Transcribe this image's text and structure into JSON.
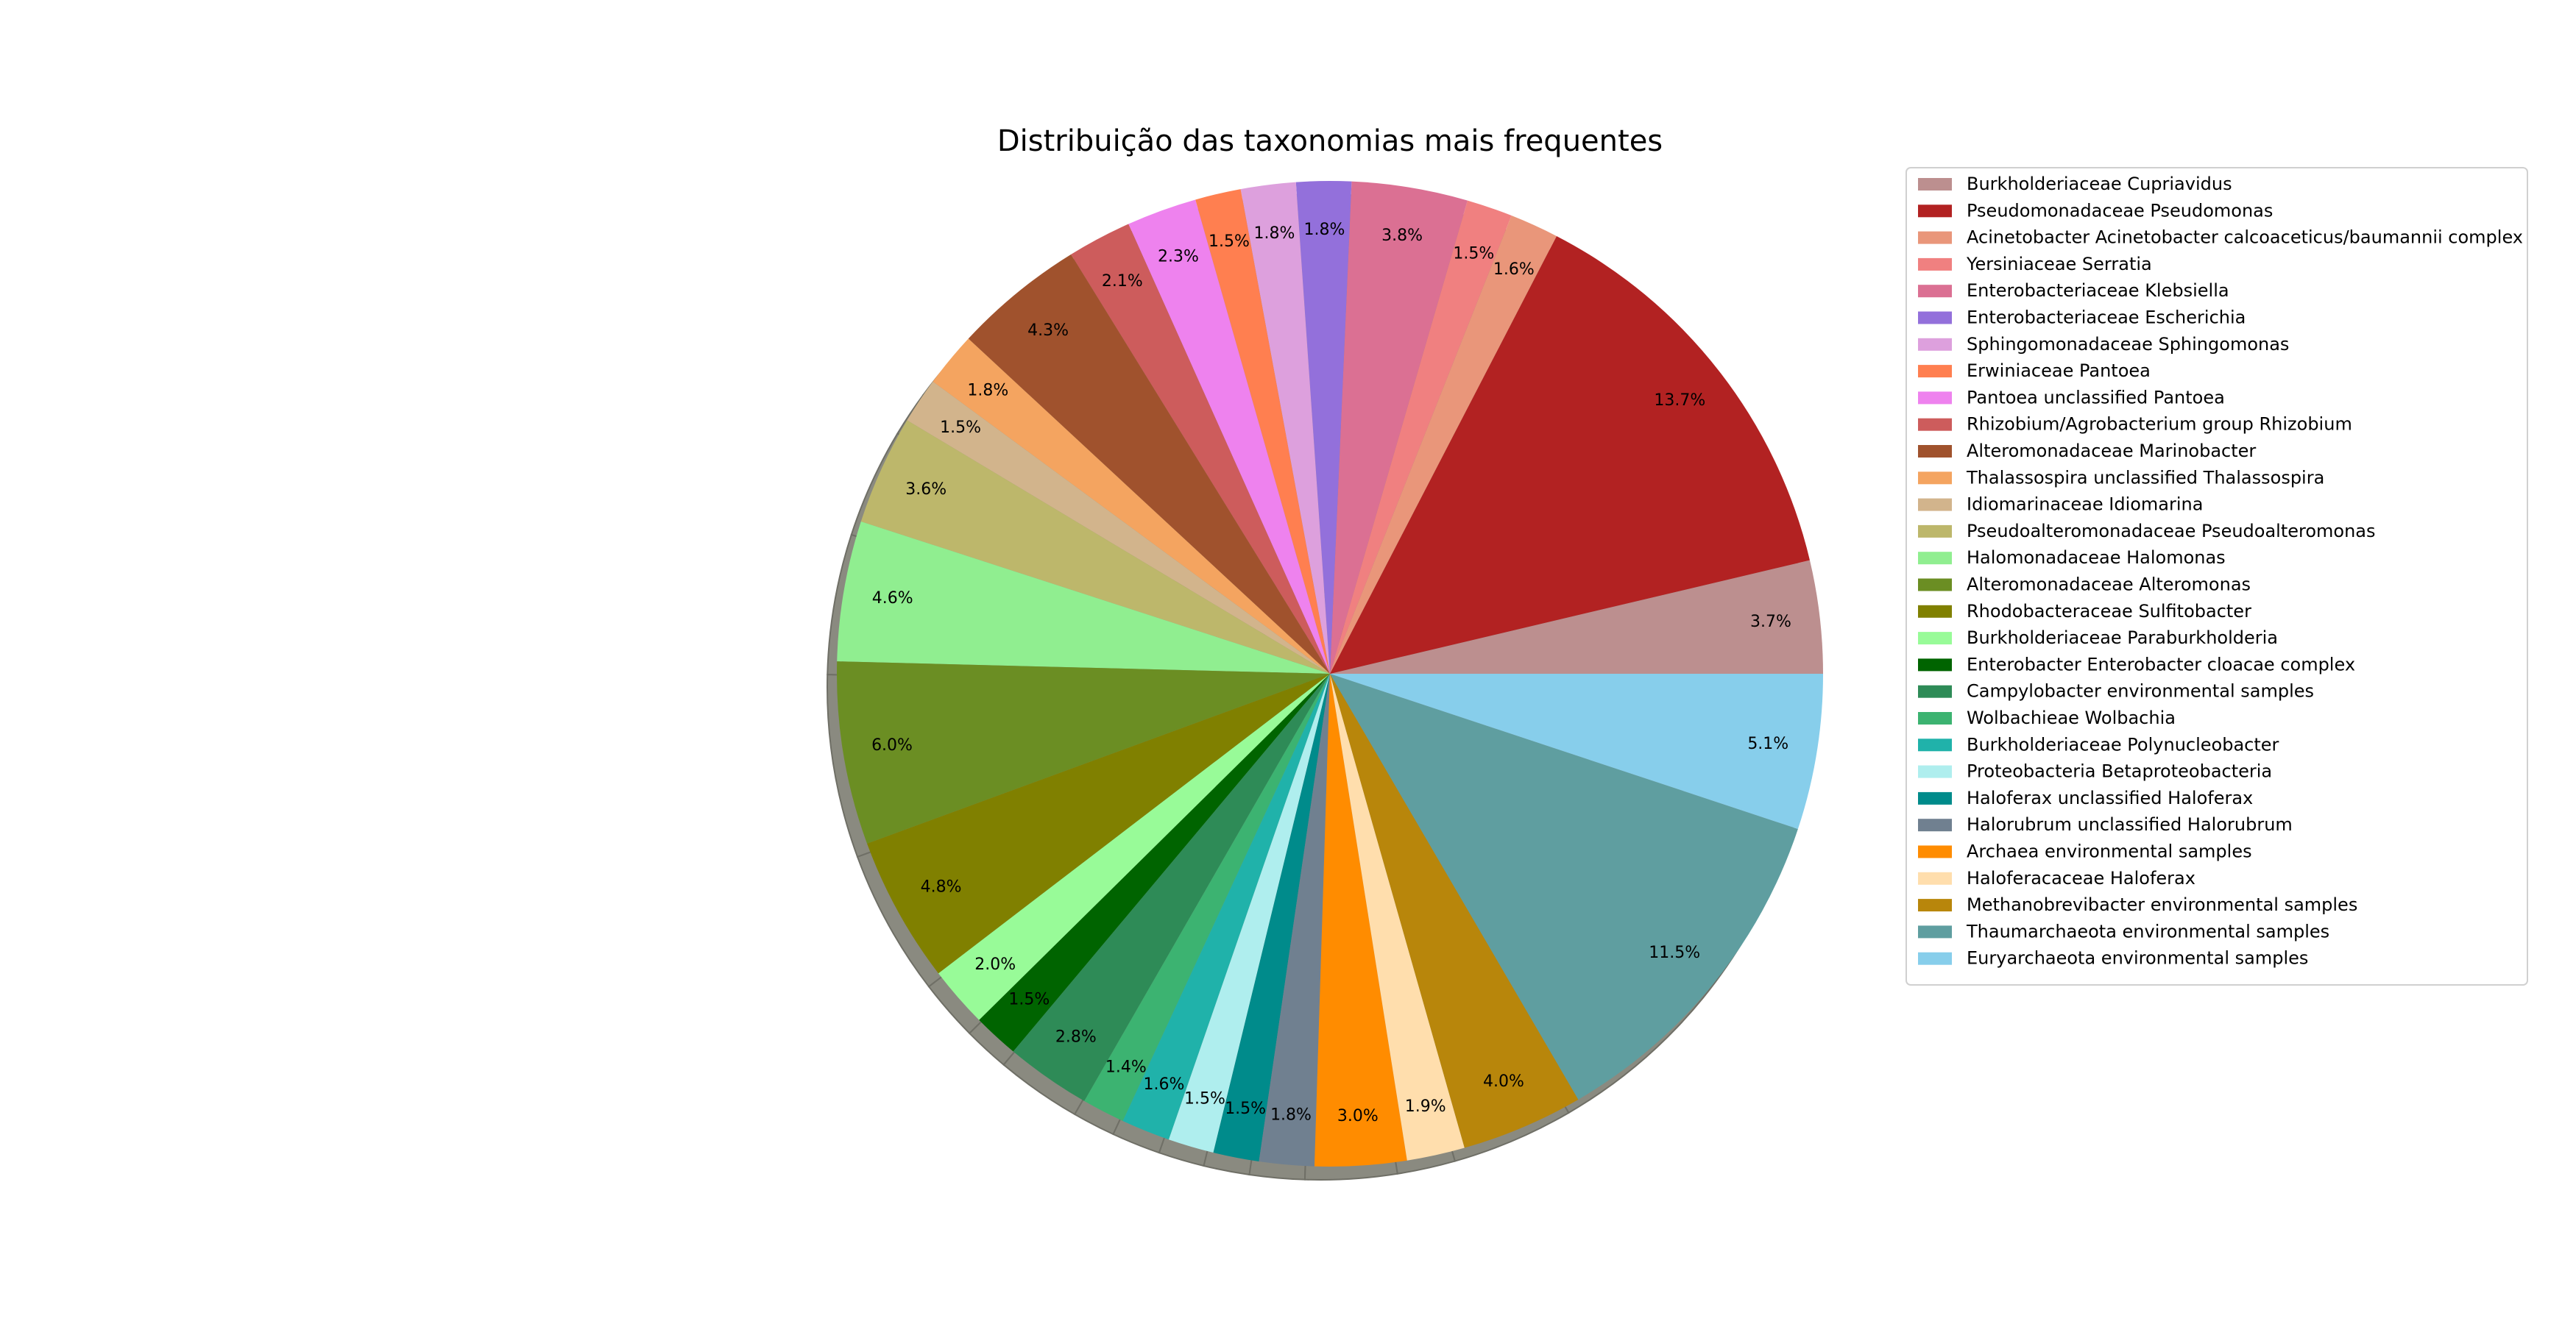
{
  "chart_data": {
    "type": "pie",
    "title": "Distribuição das taxonomias mais frequentes",
    "legend_position": "right",
    "shadow": true,
    "start_angle_deg": 0,
    "direction": "counterclockwise",
    "slices": [
      {
        "label": "Burkholderiaceae Cupriavidus",
        "value": 3.7,
        "pct_label": "3.7%",
        "color": "#BC8F8F"
      },
      {
        "label": "Pseudomonadaceae Pseudomonas",
        "value": 13.7,
        "pct_label": "13.7%",
        "color": "#B22222"
      },
      {
        "label": "Acinetobacter Acinetobacter calcoaceticus/baumannii complex",
        "value": 1.6,
        "pct_label": "1.6%",
        "color": "#E9967A"
      },
      {
        "label": "Yersiniaceae Serratia",
        "value": 1.5,
        "pct_label": "1.5%",
        "color": "#F08080"
      },
      {
        "label": "Enterobacteriaceae Klebsiella",
        "value": 3.8,
        "pct_label": "3.8%",
        "color": "#DB7093"
      },
      {
        "label": "Enterobacteriaceae Escherichia",
        "value": 1.8,
        "pct_label": "1.8%",
        "color": "#9370DB"
      },
      {
        "label": "Sphingomonadaceae Sphingomonas",
        "value": 1.8,
        "pct_label": "1.8%",
        "color": "#DDA0DD"
      },
      {
        "label": "Erwiniaceae Pantoea",
        "value": 1.5,
        "pct_label": "1.5%",
        "color": "#FF7F50"
      },
      {
        "label": "Pantoea unclassified Pantoea",
        "value": 2.3,
        "pct_label": "2.3%",
        "color": "#EE82EE"
      },
      {
        "label": "Rhizobium/Agrobacterium group Rhizobium",
        "value": 2.1,
        "pct_label": "2.1%",
        "color": "#CD5C5C"
      },
      {
        "label": "Alteromonadaceae Marinobacter",
        "value": 4.3,
        "pct_label": "4.3%",
        "color": "#A0522D"
      },
      {
        "label": "Thalassospira unclassified Thalassospira",
        "value": 1.8,
        "pct_label": "1.8%",
        "color": "#F4A460"
      },
      {
        "label": "Idiomarinaceae Idiomarina",
        "value": 1.5,
        "pct_label": "1.5%",
        "color": "#D2B48C"
      },
      {
        "label": "Pseudoalteromonadaceae Pseudoalteromonas",
        "value": 3.6,
        "pct_label": "3.6%",
        "color": "#BDB76B"
      },
      {
        "label": "Halomonadaceae Halomonas",
        "value": 4.6,
        "pct_label": "4.6%",
        "color": "#90EE90"
      },
      {
        "label": "Alteromonadaceae Alteromonas",
        "value": 6.0,
        "pct_label": "6.0%",
        "color": "#6B8E23"
      },
      {
        "label": "Rhodobacteraceae Sulfitobacter",
        "value": 4.8,
        "pct_label": "4.8%",
        "color": "#808000"
      },
      {
        "label": "Burkholderiaceae Paraburkholderia",
        "value": 2.0,
        "pct_label": "2.0%",
        "color": "#98FB98"
      },
      {
        "label": "Enterobacter Enterobacter cloacae complex",
        "value": 1.5,
        "pct_label": "1.5%",
        "color": "#006400"
      },
      {
        "label": "Campylobacter environmental samples",
        "value": 2.8,
        "pct_label": "2.8%",
        "color": "#2E8B57"
      },
      {
        "label": "Wolbachieae Wolbachia",
        "value": 1.4,
        "pct_label": "1.4%",
        "color": "#3CB371"
      },
      {
        "label": "Burkholderiaceae Polynucleobacter",
        "value": 1.6,
        "pct_label": "1.6%",
        "color": "#20B2AA"
      },
      {
        "label": "Proteobacteria Betaproteobacteria",
        "value": 1.5,
        "pct_label": "1.5%",
        "color": "#AFEEEE"
      },
      {
        "label": "Haloferax unclassified Haloferax",
        "value": 1.5,
        "pct_label": "1.5%",
        "color": "#008B8B"
      },
      {
        "label": "Halorubrum unclassified Halorubrum",
        "value": 1.8,
        "pct_label": "1.8%",
        "color": "#708090"
      },
      {
        "label": "Archaea environmental samples",
        "value": 3.0,
        "pct_label": "3.0%",
        "color": "#FF8C00"
      },
      {
        "label": "Haloferacaceae Haloferax",
        "value": 1.9,
        "pct_label": "1.9%",
        "color": "#FFDEAD"
      },
      {
        "label": "Methanobrevibacter environmental samples",
        "value": 4.0,
        "pct_label": "4.0%",
        "color": "#B8860B"
      },
      {
        "label": "Thaumarchaeota environmental samples",
        "value": 11.5,
        "pct_label": "11.5%",
        "color": "#5F9EA0"
      },
      {
        "label": "Euryarchaeota environmental samples",
        "value": 5.1,
        "pct_label": "5.1%",
        "color": "#87CEEB"
      }
    ]
  }
}
